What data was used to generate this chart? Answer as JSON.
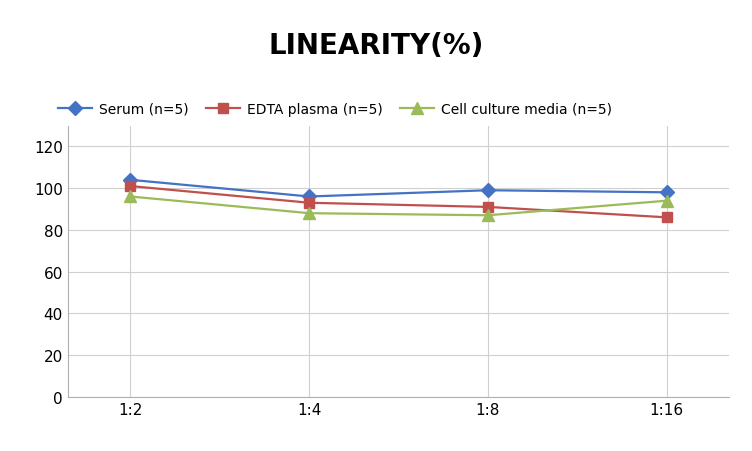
{
  "title": "LINEARITY(%)",
  "x_labels": [
    "1:2",
    "1:4",
    "1:8",
    "1:16"
  ],
  "series": [
    {
      "name": "Serum (n=5)",
      "values": [
        104,
        96,
        99,
        98
      ],
      "color": "#4472C4",
      "marker": "D",
      "markersize": 7,
      "linewidth": 1.6
    },
    {
      "name": "EDTA plasma (n=5)",
      "values": [
        101,
        93,
        91,
        86
      ],
      "color": "#C0504D",
      "marker": "s",
      "markersize": 7,
      "linewidth": 1.6
    },
    {
      "name": "Cell culture media (n=5)",
      "values": [
        96,
        88,
        87,
        94
      ],
      "color": "#9BBB59",
      "marker": "^",
      "markersize": 8,
      "linewidth": 1.6
    }
  ],
  "ylim": [
    0,
    130
  ],
  "yticks": [
    0,
    20,
    40,
    60,
    80,
    100,
    120
  ],
  "background_color": "#ffffff",
  "grid_color": "#d0d0d0",
  "title_fontsize": 20,
  "title_fontweight": "bold",
  "legend_fontsize": 10,
  "tick_fontsize": 11,
  "xlim_left": -0.35,
  "xlim_right": 3.35
}
